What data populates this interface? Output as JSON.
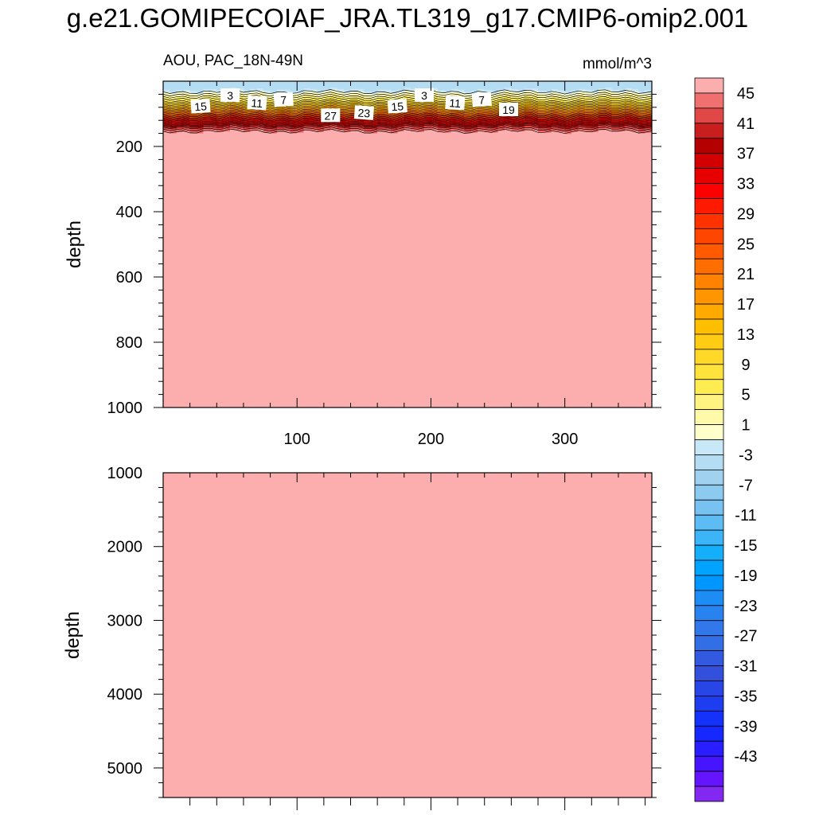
{
  "title": "g.e21.GOMIPECOIAF_JRA.TL319_g17.CMIP6-omip2.001",
  "chart_data": [
    {
      "type": "heatmap",
      "panel": "upper",
      "left_label": "AOU, PAC_18N-49N",
      "right_label": "mmol/m^3",
      "ylabel": "depth",
      "xlabel": "",
      "xlim": [
        0,
        365
      ],
      "ylim": [
        1000,
        0
      ],
      "x_ticks": [
        100,
        200,
        300
      ],
      "y_ticks": [
        200,
        400,
        600,
        800,
        1000
      ],
      "value_by_depth": [
        {
          "depth": 0,
          "value": -3
        },
        {
          "depth": 25,
          "value": -3
        },
        {
          "depth": 40,
          "value": 1
        },
        {
          "depth": 60,
          "value": 7
        },
        {
          "depth": 80,
          "value": 15
        },
        {
          "depth": 100,
          "value": 23
        },
        {
          "depth": 120,
          "value": 33
        },
        {
          "depth": 140,
          "value": 41
        },
        {
          "depth": 160,
          "value": 47
        },
        {
          "depth": 1000,
          "value": 47
        }
      ],
      "contour_labels": [
        "15",
        "3",
        "11",
        "7",
        "27",
        "23",
        "15",
        "3",
        "11",
        "7",
        "19"
      ]
    },
    {
      "type": "heatmap",
      "panel": "lower",
      "ylabel": "depth",
      "xlim": [
        0,
        365
      ],
      "ylim": [
        5400,
        1000
      ],
      "y_ticks": [
        1000,
        2000,
        3000,
        4000,
        5000
      ],
      "value_by_depth": [
        {
          "depth": 1000,
          "value": 47
        },
        {
          "depth": 5400,
          "value": 47
        }
      ]
    }
  ],
  "colorbar": {
    "labels": [
      "45",
      "41",
      "37",
      "33",
      "29",
      "25",
      "21",
      "17",
      "13",
      "9",
      "5",
      "1",
      "-3",
      "-7",
      "-11",
      "-15",
      "-19",
      "-23",
      "-27",
      "-31",
      "-35",
      "-39",
      "-43"
    ],
    "colors": [
      "#fcaeae",
      "#f07070",
      "#e04848",
      "#c81e1e",
      "#b40000",
      "#d20000",
      "#e80000",
      "#ff0000",
      "#ff1a00",
      "#ff3200",
      "#ff4600",
      "#ff5a00",
      "#ff6e00",
      "#ff8200",
      "#ff9600",
      "#ffaa00",
      "#ffbe00",
      "#ffcc14",
      "#ffd828",
      "#ffe23c",
      "#ffec50",
      "#fff482",
      "#fffaaa",
      "#ffffcc",
      "#c8e8f8",
      "#b4ddf4",
      "#a0d2f0",
      "#8ccaf0",
      "#78c2f2",
      "#5ebcf4",
      "#3cb4f8",
      "#14aefa",
      "#00a4ff",
      "#0096ff",
      "#1e8cf5",
      "#2882f0",
      "#3278eb",
      "#326ee6",
      "#325ae0",
      "#3250dc",
      "#2846e6",
      "#1e3cf0",
      "#1432fa",
      "#1428ff",
      "#281eff",
      "#4614ff",
      "#6414ff",
      "#8228f0"
    ]
  }
}
